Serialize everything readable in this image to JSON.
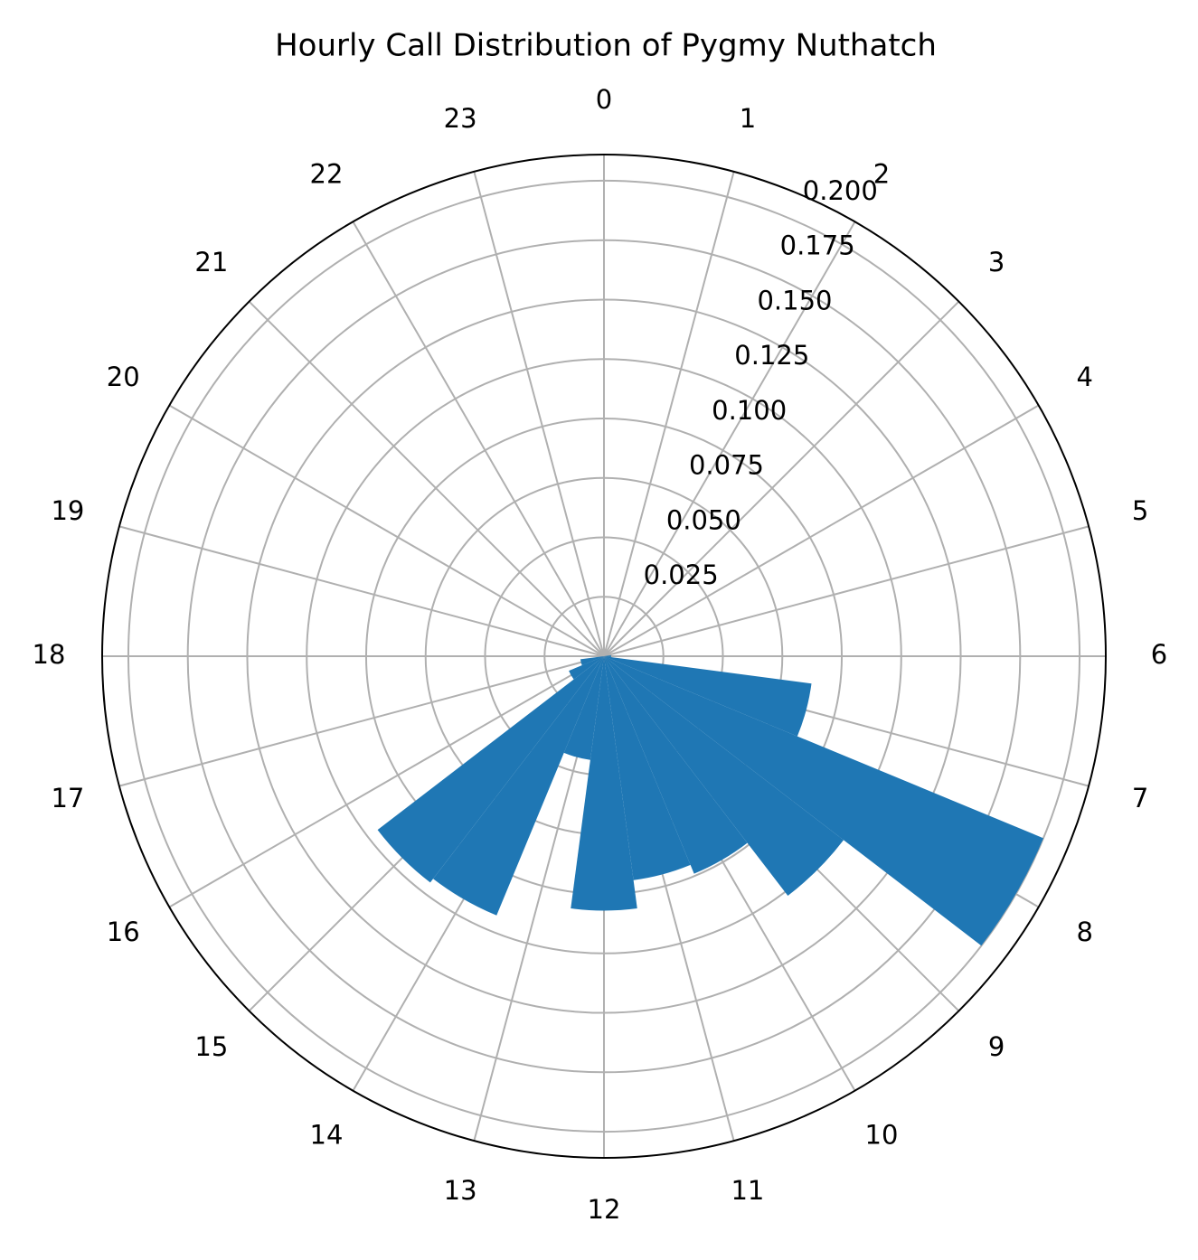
{
  "chart_data": {
    "type": "polar_bar",
    "title": "Hourly Call Distribution of Pygmy Nuthatch",
    "categories": [
      0,
      1,
      2,
      3,
      4,
      5,
      6,
      7,
      8,
      9,
      10,
      11,
      12,
      13,
      14,
      15,
      16,
      17,
      18,
      19,
      20,
      21,
      22,
      23
    ],
    "values": [
      0,
      0,
      0,
      0,
      0,
      0,
      0.003,
      0.088,
      0.2,
      0.127,
      0.099,
      0.095,
      0.107,
      0.044,
      0.118,
      0.12,
      0.016,
      0.01,
      0,
      0,
      0,
      0,
      0,
      0
    ],
    "color": "#1f77b4",
    "ylim": [
      0,
      0.211
    ],
    "yticks": [
      {
        "value": 0.025,
        "label": "0.025"
      },
      {
        "value": 0.05,
        "label": "0.050"
      },
      {
        "value": 0.075,
        "label": "0.075"
      },
      {
        "value": 0.1,
        "label": "0.100"
      },
      {
        "value": 0.125,
        "label": "0.125"
      },
      {
        "value": 0.15,
        "label": "0.150"
      },
      {
        "value": 0.175,
        "label": "0.175"
      },
      {
        "value": 0.2,
        "label": "0.200"
      }
    ],
    "grid": true
  }
}
